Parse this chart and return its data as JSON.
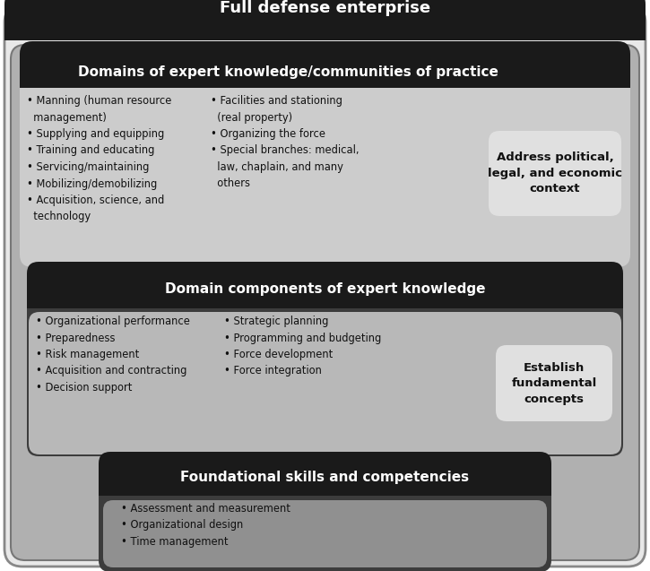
{
  "title": "Full defense enterprise",
  "layer1": {
    "title": "Domains of expert knowledge/communities of practice",
    "col1": "• Manning (human resource\n  management)\n• Supplying and equipping\n• Training and educating\n• Servicing/maintaining\n• Mobilizing/demobilizing\n• Acquisition, science, and\n  technology",
    "col2": "• Facilities and stationing\n  (real property)\n• Organizing the force\n• Special branches: medical,\n  law, chaplain, and many\n  others",
    "sidebar": "Address political,\nlegal, and economic\ncontext"
  },
  "layer2": {
    "title": "Domain components of expert knowledge",
    "col1": "• Organizational performance\n• Preparedness\n• Risk management\n• Acquisition and contracting\n• Decision support",
    "col2": "• Strategic planning\n• Programming and budgeting\n• Force development\n• Force integration",
    "sidebar": "Establish\nfundamental\nconcepts"
  },
  "layer3": {
    "title": "Foundational skills and competencies",
    "items": "• Assessment and measurement\n• Organizational design\n• Time management"
  },
  "figsize": [
    7.25,
    6.37
  ],
  "dpi": 100
}
